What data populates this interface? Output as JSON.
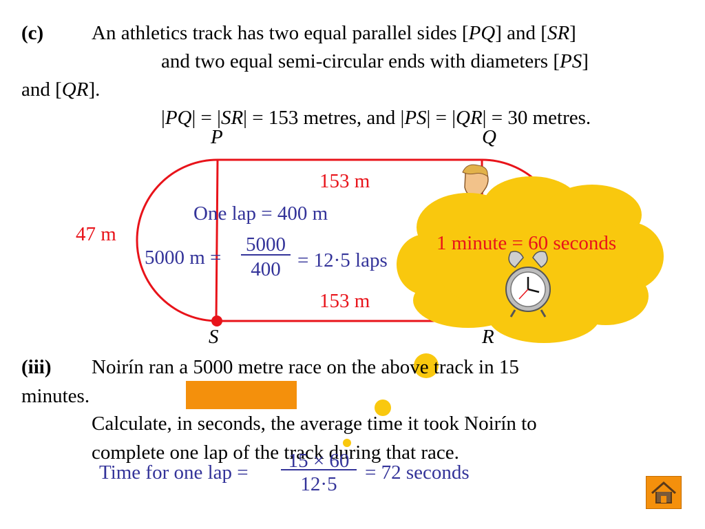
{
  "slide": {
    "part_c": {
      "label": "(c)",
      "line1_a": "An athletics track has two equal parallel sides [",
      "pq": "PQ",
      "line1_b": "] and [",
      "sr": "SR",
      "line1_c": "]",
      "line2_a": "and two equal semi-circular ends with diameters [",
      "ps": "PS",
      "line2_b": "]",
      "line3_a": "and [",
      "qr": "QR",
      "line3_b": "].",
      "line4_a": "|",
      "line4_pq": "PQ",
      "line4_b": "| = |",
      "line4_sr": "SR",
      "line4_c": "| = 153 metres, and |",
      "line4_ps": "PS",
      "line4_d": "| = |",
      "line4_qr": "QR",
      "line4_e": "| = 30 metres."
    },
    "diagram": {
      "label_p": "P",
      "label_q": "Q",
      "label_s": "S",
      "label_r": "R",
      "top_length": "153 m",
      "bottom_length": "153 m",
      "end_length": "47 m",
      "one_lap": "One lap = 400 m",
      "laps_lhs": "5000 m =",
      "laps_num": "5000",
      "laps_den": "400",
      "laps_rhs": "= 12·5 laps",
      "track_color": "#e8131a",
      "dot_color": "#e8131a"
    },
    "cloud": {
      "text": "1 minute = 60 seconds",
      "color": "#f9c80e",
      "icon": "alarm-clock-icon"
    },
    "part_iii": {
      "label": "(iii)",
      "line1": "Noirín ran a 5000 metre race on the above track in 15",
      "line2": "minutes.",
      "line3": "Calculate, in seconds, the average time it took Noirín to",
      "line4": "complete one lap of the track during that race."
    },
    "answer": {
      "lhs": "Time for one lap =",
      "num": "15 × 60",
      "den": "12·5",
      "rhs": "= 72 seconds"
    },
    "nav": {
      "home_icon": "home-icon"
    }
  }
}
